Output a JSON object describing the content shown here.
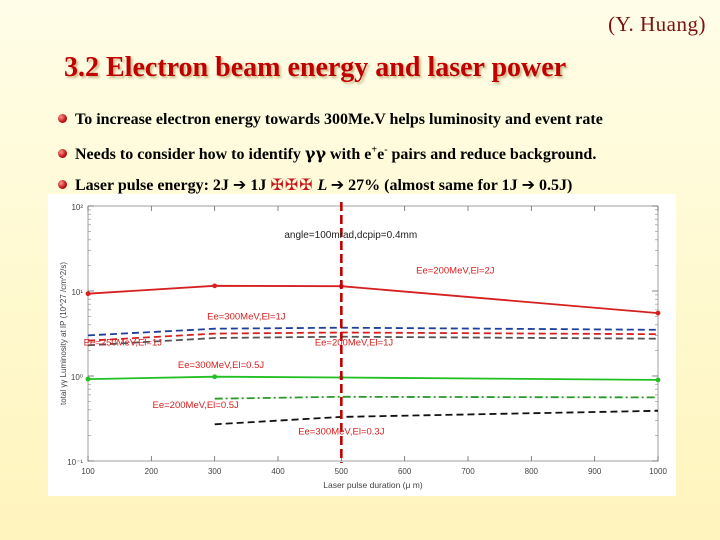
{
  "header": {
    "author": "(Y. Huang)",
    "title": "3.2 Electron beam energy and laser power"
  },
  "bullets": {
    "b1": "To increase electron energy towards 300Me.V helps luminosity and event rate",
    "b2": {
      "pre": "Needs to consider how to identify ",
      "gg": "γγ",
      "mid": " with e",
      "sup1": "+",
      "e2": "e",
      "sup2": "-",
      "post": " pairs and reduce background."
    },
    "b3": {
      "pre": "Laser pulse energy:  2J ",
      "arrow": "➔",
      "j1": " 1J  ",
      "crosses": "✠✠✠",
      "l": "  L ",
      "arrow2": "➔",
      "pct": " 27%  (almost same for 1J ",
      "arrow3": "➔",
      "end": " 0.5J)"
    }
  },
  "chart_data": {
    "type": "line",
    "title": "",
    "xlabel": "Laser pulse duration (μ m)",
    "ylabel": "total γγ Luminosity at IP (10^27 /cm^2/s)",
    "xlim": [
      100,
      1000
    ],
    "ylim": [
      0.1,
      100
    ],
    "yscale": "log",
    "x_ticks": [
      100,
      200,
      300,
      400,
      500,
      600,
      700,
      800,
      900,
      1000
    ],
    "x_tick_labels": [
      "100",
      "200",
      "300",
      "400",
      "500",
      "600",
      "700",
      "800",
      "900",
      "1000"
    ],
    "y_ticks": [
      0.1,
      1,
      10,
      100
    ],
    "y_tick_labels": [
      "10⁻¹",
      "10⁰",
      "10¹",
      "10²"
    ],
    "annotation": "angle=100mrad,dcpip=0.4mm",
    "vline": {
      "x": 500,
      "color": "#c00000"
    },
    "series": [
      {
        "name": "Ee=200MeV,El=2J",
        "color": "#d62020",
        "dash": "solid",
        "x": [
          100,
          300,
          500,
          1000
        ],
        "y": [
          9.3,
          11.5,
          11.4,
          5.5
        ]
      },
      {
        "name": "Ee=300MeV,El=1J",
        "color": "#1f3f9a",
        "dash": "dashed",
        "x": [
          100,
          300,
          500,
          1000
        ],
        "y": [
          3.0,
          3.6,
          3.7,
          3.5
        ]
      },
      {
        "name": "Ee=250MeV,El=1J",
        "color": "#d62020",
        "dash": "dashed",
        "x": [
          100,
          300,
          500,
          1000
        ],
        "y": [
          2.6,
          3.15,
          3.25,
          3.1
        ]
      },
      {
        "name": "Ee=200MeV,El=1J",
        "color": "#555555",
        "dash": "dashed",
        "x": [
          100,
          300,
          500,
          1000
        ],
        "y": [
          2.3,
          2.8,
          2.9,
          2.75
        ]
      },
      {
        "name": "Ee=300MeV,El=0.5J",
        "color": "#22c022",
        "dash": "solid",
        "x": [
          100,
          300,
          500,
          1000
        ],
        "y": [
          0.92,
          0.98,
          0.96,
          0.9
        ]
      },
      {
        "name": "Ee=200MeV,El=0.5J",
        "color": "#2a9a2a",
        "dash": "dashdot",
        "x": [
          300,
          500,
          1000
        ],
        "y": [
          0.54,
          0.57,
          0.56
        ]
      },
      {
        "name": "Ee=300MeV,El=0.3J",
        "color": "#111111",
        "dash": "dashed",
        "x": [
          300,
          500,
          1000
        ],
        "y": [
          0.27,
          0.33,
          0.39
        ]
      }
    ],
    "labels": [
      {
        "text": "Ee=200MeV,El=2J",
        "x": 680,
        "y": 16,
        "color": "#d62020"
      },
      {
        "text": "Ee=300MeV,El=1J",
        "x": 350,
        "y": 4.6,
        "color": "#d62020"
      },
      {
        "text": "Ee=250MeV,El=1J",
        "x": 155,
        "y": 2.3,
        "color": "#d62020"
      },
      {
        "text": "Ee=200MeV,El=1J",
        "x": 520,
        "y": 2.3,
        "color": "#d62020"
      },
      {
        "text": "Ee=300MeV,El=0.5J",
        "x": 310,
        "y": 1.25,
        "color": "#d62020"
      },
      {
        "text": "Ee=200MeV,El=0.5J",
        "x": 270,
        "y": 0.42,
        "color": "#d62020"
      },
      {
        "text": "Ee=300MeV,El=0.3J",
        "x": 500,
        "y": 0.205,
        "color": "#d62020"
      }
    ]
  }
}
